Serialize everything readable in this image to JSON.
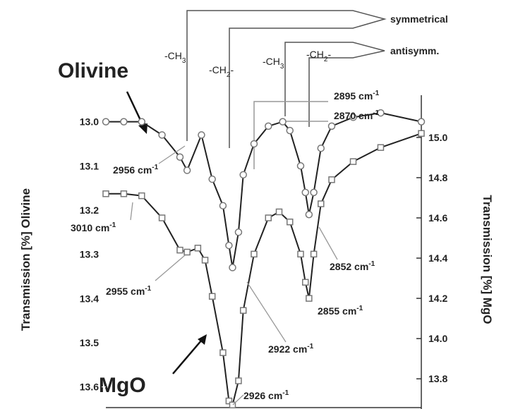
{
  "chart_data": {
    "type": "scatter",
    "y_label": "Transmission [%] Olivine",
    "y2_label": "Transmission [%] MgO",
    "xlim": [
      3022,
      2758
    ],
    "ylim": [
      13.65,
      12.94
    ],
    "yticks": [
      {
        "value": 13,
        "label": "13.0"
      },
      13.1,
      13.2,
      13.3,
      13.4,
      13.5,
      13.6
    ],
    "y2lim": [
      13.65,
      15.21
    ],
    "y2ticks": [
      {
        "value": 15,
        "label": "15.0"
      },
      14.8,
      14.6,
      14.4,
      14.2,
      {
        "value": 14,
        "label": "14.0"
      },
      13.8
    ],
    "series": [
      {
        "name": "Olivine",
        "color": "#777777",
        "marker": "circle",
        "x": [
          3022,
          3007,
          2992,
          2975,
          2960,
          2954,
          2942,
          2933,
          2924,
          2919,
          2916,
          2911,
          2907,
          2898,
          2886,
          2874,
          2868,
          2859,
          2855,
          2852,
          2848,
          2842,
          2833,
          2815,
          2792,
          2758
        ],
        "values": [
          13.0,
          13.0,
          13.0,
          13.03,
          13.08,
          13.11,
          13.03,
          13.13,
          13.19,
          13.28,
          13.33,
          13.25,
          13.12,
          13.05,
          13.01,
          13.0,
          13.02,
          13.1,
          13.16,
          13.21,
          13.16,
          13.06,
          13.01,
          12.99,
          12.98,
          13.0
        ]
      },
      {
        "name": "MgO",
        "color": "#777777",
        "marker": "square",
        "axis": "y2",
        "x": [
          3022,
          3007,
          2992,
          2975,
          2960,
          2954,
          2945,
          2939,
          2933,
          2924,
          2919,
          2916,
          2911,
          2907,
          2898,
          2886,
          2877,
          2868,
          2859,
          2855,
          2852,
          2848,
          2842,
          2833,
          2815,
          2792,
          2758
        ],
        "values": [
          14.72,
          14.72,
          14.71,
          14.6,
          14.44,
          14.43,
          14.45,
          14.39,
          14.21,
          13.93,
          13.69,
          13.67,
          13.79,
          14.14,
          14.42,
          14.6,
          14.63,
          14.58,
          14.42,
          14.28,
          14.2,
          14.42,
          14.67,
          14.79,
          14.88,
          14.95,
          15.02
        ]
      }
    ],
    "annotations": [
      {
        "text": "2956 cm",
        "sup": "-1"
      },
      {
        "text": "3010 cm",
        "sup": "-1"
      },
      {
        "text": "2955 cm",
        "sup": "-1"
      },
      {
        "text": "2926 cm",
        "sup": "-1"
      },
      {
        "text": "2922 cm",
        "sup": "-1"
      },
      {
        "text": "2855 cm",
        "sup": "-1"
      },
      {
        "text": "2852 cm",
        "sup": "-1"
      },
      {
        "text": "2895 cm",
        "sup": "-1"
      },
      {
        "text": "2870 cm",
        "sup": "-1"
      }
    ],
    "groups": [
      {
        "text": "-CH",
        "sub": "3"
      },
      {
        "text": "-CH",
        "sub": "2",
        "after": "-"
      },
      {
        "text": "-CH",
        "sub": "3"
      },
      {
        "text": "-CH",
        "sub": "2",
        "after": "-"
      }
    ],
    "modes": [
      "symmetrical",
      "antisymm."
    ]
  }
}
